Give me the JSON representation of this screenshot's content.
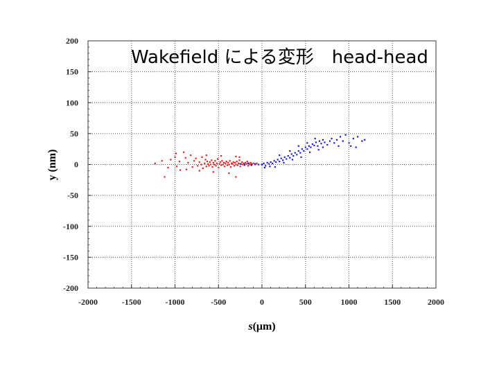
{
  "chart_data": {
    "type": "scatter",
    "title": "Wakefield による変形　head-head",
    "xlabel_italic": "s",
    "xlabel_rest": "(μm)",
    "ylabel": "y (nm)",
    "xlim": [
      -2000,
      2000
    ],
    "ylim": [
      -200,
      200
    ],
    "xticks": [
      -2000,
      -1500,
      -1000,
      -500,
      0,
      500,
      1000,
      1500,
      2000
    ],
    "yticks": [
      -200,
      -150,
      -100,
      -50,
      0,
      50,
      100,
      150,
      200
    ],
    "grid": true,
    "series": [
      {
        "color": "#e02020",
        "description_points": "tail particles concentrated near s ≈ -600 to -100 μm, y ≈ -10 to 15 nm",
        "values": [
          [
            -1230,
            2
          ],
          [
            -1120,
            -20
          ],
          [
            -1080,
            -5
          ],
          [
            -1050,
            8
          ],
          [
            -1000,
            12
          ],
          [
            -980,
            -3
          ],
          [
            -950,
            5
          ],
          [
            -900,
            20
          ],
          [
            -870,
            -8
          ],
          [
            -850,
            3
          ],
          [
            -820,
            15
          ],
          [
            -800,
            -4
          ],
          [
            -780,
            6
          ],
          [
            -760,
            10
          ],
          [
            -740,
            -2
          ],
          [
            -720,
            4
          ],
          [
            -700,
            0
          ],
          [
            -690,
            12
          ],
          [
            -680,
            -6
          ],
          [
            -660,
            2
          ],
          [
            -650,
            8
          ],
          [
            -640,
            -3
          ],
          [
            -630,
            5
          ],
          [
            -620,
            1
          ],
          [
            -610,
            -2
          ],
          [
            -600,
            4
          ],
          [
            -590,
            0
          ],
          [
            -580,
            7
          ],
          [
            -570,
            -4
          ],
          [
            -560,
            3
          ],
          [
            -550,
            0
          ],
          [
            -540,
            6
          ],
          [
            -530,
            -2
          ],
          [
            -520,
            2
          ],
          [
            -510,
            9
          ],
          [
            -500,
            -5
          ],
          [
            -490,
            1
          ],
          [
            -480,
            4
          ],
          [
            -470,
            -1
          ],
          [
            -460,
            6
          ],
          [
            -450,
            0
          ],
          [
            -440,
            3
          ],
          [
            -430,
            -3
          ],
          [
            -420,
            2
          ],
          [
            -410,
            5
          ],
          [
            -400,
            -1
          ],
          [
            -390,
            3
          ],
          [
            -380,
            0
          ],
          [
            -370,
            6
          ],
          [
            -360,
            -4
          ],
          [
            -350,
            2
          ],
          [
            -340,
            1
          ],
          [
            -330,
            4
          ],
          [
            -320,
            -2
          ],
          [
            -310,
            3
          ],
          [
            -300,
            0
          ],
          [
            -290,
            5
          ],
          [
            -280,
            -1
          ],
          [
            -270,
            2
          ],
          [
            -260,
            7
          ],
          [
            -250,
            -3
          ],
          [
            -240,
            1
          ],
          [
            -230,
            4
          ],
          [
            -220,
            0
          ],
          [
            -210,
            2
          ],
          [
            -200,
            -1
          ],
          [
            -190,
            3
          ],
          [
            -180,
            1
          ],
          [
            -170,
            5
          ],
          [
            -160,
            -2
          ],
          [
            -150,
            2
          ],
          [
            -140,
            0
          ],
          [
            -130,
            3
          ],
          [
            -120,
            1
          ],
          [
            -100,
            2
          ],
          [
            -80,
            0
          ],
          [
            -60,
            2
          ],
          [
            -640,
            15
          ],
          [
            -560,
            -12
          ],
          [
            -470,
            14
          ],
          [
            -380,
            -14
          ],
          [
            -300,
            13
          ],
          [
            -720,
            -10
          ],
          [
            -880,
            11
          ],
          [
            -940,
            -9
          ],
          [
            -990,
            18
          ],
          [
            -1150,
            6
          ],
          [
            -300,
            -20
          ],
          [
            -260,
            12
          ]
        ]
      },
      {
        "color": "#1a1adc",
        "description_points": "head particles rising from s ≈ -200 μm (y ≈ 0) to s ≈ 1150 μm (y ≈ 40 nm)",
        "values": [
          [
            -250,
            1
          ],
          [
            -200,
            0
          ],
          [
            -160,
            2
          ],
          [
            -120,
            -1
          ],
          [
            -80,
            1
          ],
          [
            -40,
            0
          ],
          [
            0,
            0
          ],
          [
            20,
            2
          ],
          [
            40,
            -2
          ],
          [
            60,
            3
          ],
          [
            80,
            1
          ],
          [
            100,
            4
          ],
          [
            120,
            2
          ],
          [
            140,
            6
          ],
          [
            160,
            4
          ],
          [
            180,
            8
          ],
          [
            200,
            5
          ],
          [
            220,
            10
          ],
          [
            240,
            7
          ],
          [
            260,
            12
          ],
          [
            280,
            9
          ],
          [
            300,
            14
          ],
          [
            320,
            11
          ],
          [
            340,
            17
          ],
          [
            360,
            14
          ],
          [
            380,
            19
          ],
          [
            400,
            16
          ],
          [
            420,
            22
          ],
          [
            440,
            19
          ],
          [
            460,
            25
          ],
          [
            480,
            22
          ],
          [
            500,
            28
          ],
          [
            520,
            25
          ],
          [
            540,
            30
          ],
          [
            560,
            28
          ],
          [
            580,
            33
          ],
          [
            600,
            31
          ],
          [
            620,
            36
          ],
          [
            640,
            30
          ],
          [
            660,
            38
          ],
          [
            680,
            34
          ],
          [
            700,
            40
          ],
          [
            720,
            36
          ],
          [
            750,
            32
          ],
          [
            780,
            38
          ],
          [
            800,
            42
          ],
          [
            830,
            35
          ],
          [
            860,
            40
          ],
          [
            900,
            45
          ],
          [
            930,
            38
          ],
          [
            960,
            48
          ],
          [
            1000,
            35
          ],
          [
            1020,
            30
          ],
          [
            1050,
            42
          ],
          [
            1080,
            28
          ],
          [
            1100,
            45
          ],
          [
            1150,
            38
          ],
          [
            1180,
            40
          ],
          [
            150,
            -4
          ],
          [
            250,
            3
          ],
          [
            350,
            8
          ],
          [
            450,
            12
          ],
          [
            550,
            20
          ],
          [
            650,
            24
          ],
          [
            30,
            -5
          ],
          [
            90,
            -3
          ],
          [
            200,
            15
          ],
          [
            320,
            22
          ],
          [
            420,
            30
          ],
          [
            520,
            35
          ],
          [
            610,
            42
          ],
          [
            700,
            28
          ],
          [
            880,
            30
          ]
        ]
      }
    ]
  }
}
